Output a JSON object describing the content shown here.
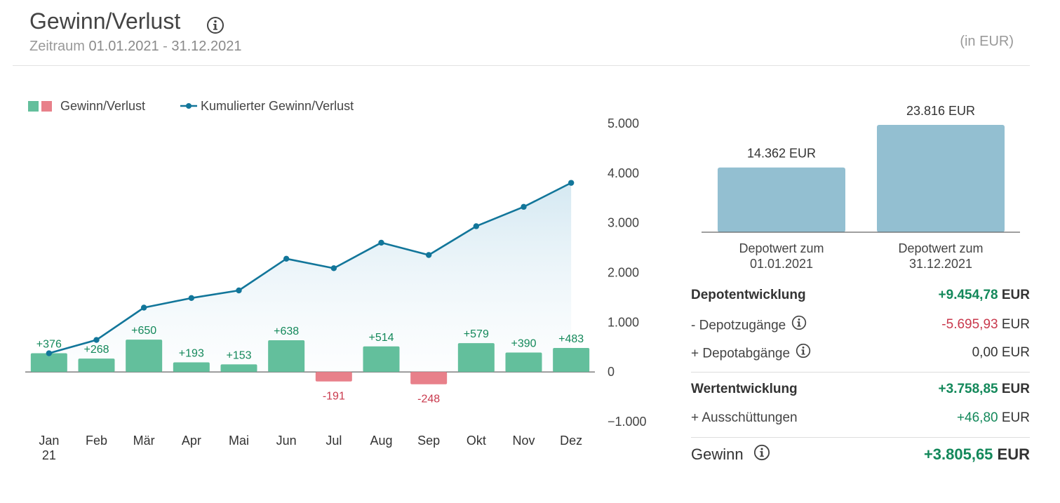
{
  "header": {
    "title": "Gewinn/Verlust",
    "period_label": "Zeitraum",
    "period_start": "01.01.2021",
    "period_sep": "-",
    "period_end": "31.12.2021",
    "unit": "(in EUR)"
  },
  "legend": {
    "bars_label": "Gewinn/Verlust",
    "line_label": "Kumulierter Gewinn/Verlust"
  },
  "colors": {
    "positive_bar": "#63bf9c",
    "negative_bar": "#e8808a",
    "line": "#12769a",
    "positive_text": "#13885a",
    "negative_text": "#c9394d",
    "depot_bar": "#93bfd1"
  },
  "chart_data": [
    {
      "type": "bar",
      "categories": [
        "Jan 21",
        "Feb",
        "Mär",
        "Apr",
        "Mai",
        "Jun",
        "Jul",
        "Aug",
        "Sep",
        "Okt",
        "Nov",
        "Dez"
      ],
      "category_labels": [
        [
          "Jan",
          "21"
        ],
        [
          "Feb"
        ],
        [
          "Mär"
        ],
        [
          "Apr"
        ],
        [
          "Mai"
        ],
        [
          "Jun"
        ],
        [
          "Jul"
        ],
        [
          "Aug"
        ],
        [
          "Sep"
        ],
        [
          "Okt"
        ],
        [
          "Nov"
        ],
        [
          "Dez"
        ]
      ],
      "series": [
        {
          "name": "Gewinn/Verlust",
          "type": "bar",
          "values": [
            376,
            268,
            650,
            193,
            153,
            638,
            -191,
            514,
            -248,
            579,
            390,
            483
          ],
          "labels": [
            "+376",
            "+268",
            "+650",
            "+193",
            "+153",
            "+638",
            "-191",
            "+514",
            "-248",
            "+579",
            "+390",
            "+483"
          ]
        },
        {
          "name": "Kumulierter Gewinn/Verlust",
          "type": "line",
          "values": [
            376,
            644,
            1294,
            1487,
            1640,
            2278,
            2087,
            2601,
            2353,
            2932,
            3322,
            3805
          ]
        }
      ],
      "y_axis": {
        "position": "right",
        "ylim": [
          -1000,
          5000
        ],
        "ticks": [
          5000,
          4000,
          3000,
          2000,
          1000,
          0,
          -1000
        ],
        "tick_labels": [
          "5.000",
          "4.000",
          "3.000",
          "2.000",
          "1.000",
          "0",
          "−1.000"
        ]
      },
      "grid": false,
      "legend_position": "top-left"
    },
    {
      "type": "bar",
      "categories": [
        "Depotwert zum 01.01.2021",
        "Depotwert zum 31.12.2021"
      ],
      "category_labels": [
        [
          "Depotwert zum",
          "01.01.2021"
        ],
        [
          "Depotwert zum",
          "31.12.2021"
        ]
      ],
      "values": [
        14362,
        23816
      ],
      "labels": [
        "14.362 EUR",
        "23.816 EUR"
      ],
      "ylim": [
        0,
        23816
      ],
      "grid": false
    }
  ],
  "summary": {
    "depotentwicklung": {
      "label": "Depotentwicklung",
      "value": "+9.454,78",
      "currency": "EUR"
    },
    "depotzugaenge": {
      "label": "- Depotzugänge",
      "value": "-5.695,93",
      "currency": "EUR"
    },
    "depotabgaenge": {
      "label": "+ Depotabgänge",
      "value": "0,00",
      "currency": "EUR"
    },
    "wertentwicklung": {
      "label": "Wertentwicklung",
      "value": "+3.758,85",
      "currency": "EUR"
    },
    "ausschuettungen": {
      "label": "+ Ausschüttungen",
      "value": "+46,80",
      "currency": "EUR"
    },
    "gewinn": {
      "label": "Gewinn",
      "value": "+3.805,65",
      "currency": "EUR"
    }
  },
  "icons": {
    "info": "info-circle-icon"
  }
}
